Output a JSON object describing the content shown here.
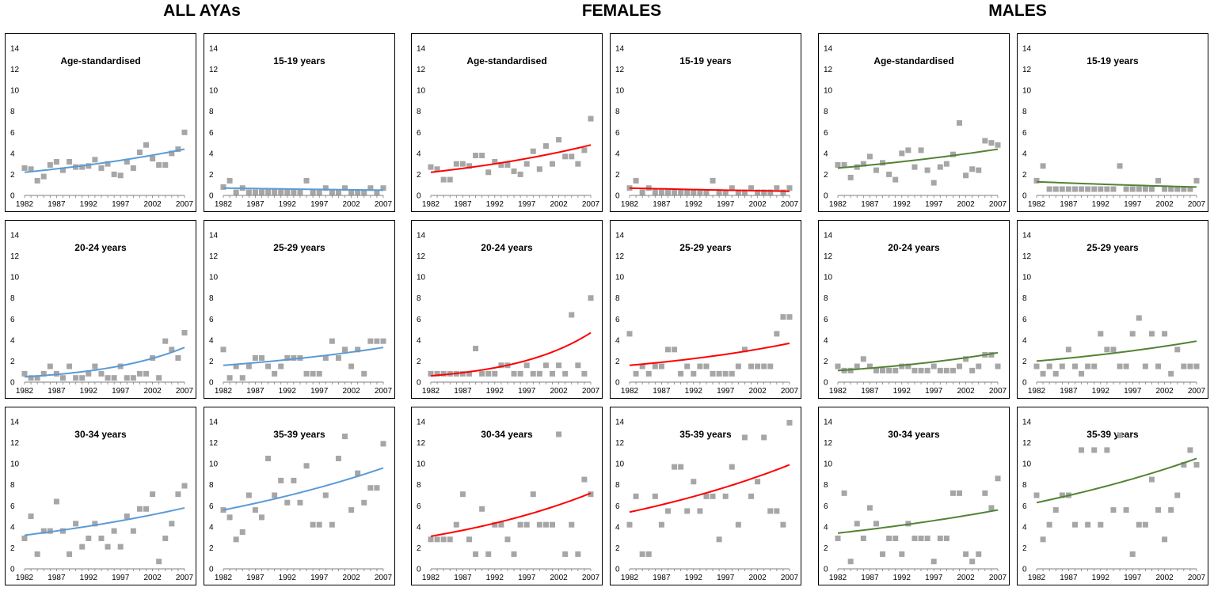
{
  "groups": [
    {
      "title": "ALL AYAs",
      "color": "#5b9bd5"
    },
    {
      "title": "FEMALES",
      "color": "#ff0000"
    },
    {
      "title": "MALES",
      "color": "#548235"
    }
  ],
  "x_ticks": [
    "1982",
    "1987",
    "1992",
    "1997",
    "2002",
    "2007"
  ],
  "y_ticks": [
    "0",
    "2",
    "4",
    "6",
    "8",
    "10",
    "12",
    "14"
  ],
  "chart_data": [
    {
      "type": "scatter",
      "group": "ALL AYAs",
      "title": "Age-standardised",
      "xlim": [
        1982,
        2007
      ],
      "ylim": [
        0,
        14
      ],
      "marker_color": "#a6a6a6",
      "fit_color": "#5b9bd5",
      "x": [
        1982,
        1983,
        1984,
        1985,
        1986,
        1987,
        1988,
        1989,
        1990,
        1991,
        1992,
        1993,
        1994,
        1995,
        1996,
        1997,
        1998,
        1999,
        2000,
        2001,
        2002,
        2003,
        2004,
        2005,
        2006,
        2007
      ],
      "values": [
        2.6,
        2.5,
        1.4,
        1.8,
        2.9,
        3.2,
        2.4,
        3.2,
        2.7,
        2.7,
        2.8,
        3.4,
        2.6,
        3.0,
        2.0,
        1.9,
        3.2,
        2.6,
        4.1,
        4.8,
        3.5,
        2.9,
        2.9,
        4.0,
        4.4,
        6.0
      ],
      "fit": [
        2.2,
        4.4
      ]
    },
    {
      "type": "scatter",
      "group": "ALL AYAs",
      "title": "15-19 years",
      "xlim": [
        1982,
        2007
      ],
      "ylim": [
        0,
        14
      ],
      "marker_color": "#a6a6a6",
      "fit_color": "#5b9bd5",
      "x": [
        1982,
        1983,
        1984,
        1985,
        1986,
        1987,
        1988,
        1989,
        1990,
        1991,
        1992,
        1993,
        1994,
        1995,
        1996,
        1997,
        1998,
        1999,
        2000,
        2001,
        2002,
        2003,
        2004,
        2005,
        2006,
        2007
      ],
      "values": [
        0.8,
        1.4,
        0.3,
        0.7,
        0.3,
        0.3,
        0.3,
        0.3,
        0.3,
        0.3,
        0.3,
        0.3,
        0.3,
        1.4,
        0.3,
        0.3,
        0.7,
        0.3,
        0.3,
        0.7,
        0.3,
        0.3,
        0.3,
        0.7,
        0.3,
        0.7
      ],
      "fit": [
        0.7,
        0.5
      ]
    },
    {
      "type": "scatter",
      "group": "FEMALES",
      "title": "Age-standardised",
      "xlim": [
        1982,
        2007
      ],
      "ylim": [
        0,
        14
      ],
      "marker_color": "#a6a6a6",
      "fit_color": "#ff0000",
      "x": [
        1982,
        1983,
        1984,
        1985,
        1986,
        1987,
        1988,
        1989,
        1990,
        1991,
        1992,
        1993,
        1994,
        1995,
        1996,
        1997,
        1998,
        1999,
        2000,
        2001,
        2002,
        2003,
        2004,
        2005,
        2006,
        2007
      ],
      "values": [
        2.7,
        2.5,
        1.5,
        1.5,
        3.0,
        3.0,
        2.8,
        3.8,
        3.8,
        2.2,
        3.2,
        2.9,
        2.9,
        2.3,
        2.0,
        3.0,
        4.2,
        2.5,
        4.7,
        3.0,
        5.3,
        3.7,
        3.7,
        3.0,
        4.3,
        7.3
      ],
      "fit": [
        2.2,
        4.8
      ]
    },
    {
      "type": "scatter",
      "group": "FEMALES",
      "title": "15-19 years",
      "xlim": [
        1982,
        2007
      ],
      "ylim": [
        0,
        14
      ],
      "marker_color": "#a6a6a6",
      "fit_color": "#ff0000",
      "x": [
        1982,
        1983,
        1984,
        1985,
        1986,
        1987,
        1988,
        1989,
        1990,
        1991,
        1992,
        1993,
        1994,
        1995,
        1996,
        1997,
        1998,
        1999,
        2000,
        2001,
        2002,
        2003,
        2004,
        2005,
        2006,
        2007
      ],
      "values": [
        0.7,
        1.4,
        0.3,
        0.7,
        0.3,
        0.3,
        0.3,
        0.3,
        0.3,
        0.3,
        0.3,
        0.3,
        0.3,
        1.4,
        0.3,
        0.3,
        0.7,
        0.3,
        0.3,
        0.7,
        0.3,
        0.3,
        0.3,
        0.7,
        0.3,
        0.7
      ],
      "fit": [
        0.7,
        0.4
      ]
    },
    {
      "type": "scatter",
      "group": "MALES",
      "title": "Age-standardised",
      "xlim": [
        1982,
        2007
      ],
      "ylim": [
        0,
        14
      ],
      "marker_color": "#a6a6a6",
      "fit_color": "#548235",
      "x": [
        1982,
        1983,
        1984,
        1985,
        1986,
        1987,
        1988,
        1989,
        1990,
        1991,
        1992,
        1993,
        1994,
        1995,
        1996,
        1997,
        1998,
        1999,
        2000,
        2001,
        2002,
        2003,
        2004,
        2005,
        2006,
        2007
      ],
      "values": [
        2.9,
        2.9,
        1.7,
        2.7,
        3.0,
        3.7,
        2.4,
        3.1,
        2.0,
        1.5,
        4.0,
        4.3,
        2.7,
        4.3,
        2.4,
        1.2,
        2.7,
        3.0,
        3.9,
        6.9,
        1.9,
        2.5,
        2.4,
        5.2,
        5.0,
        4.8
      ],
      "fit": [
        2.6,
        4.4
      ]
    },
    {
      "type": "scatter",
      "group": "MALES",
      "title": "15-19 years",
      "xlim": [
        1982,
        2007
      ],
      "ylim": [
        0,
        14
      ],
      "marker_color": "#a6a6a6",
      "fit_color": "#548235",
      "x": [
        1982,
        1983,
        1984,
        1985,
        1986,
        1987,
        1988,
        1989,
        1990,
        1991,
        1992,
        1993,
        1994,
        1995,
        1996,
        1997,
        1998,
        1999,
        2000,
        2001,
        2002,
        2003,
        2004,
        2005,
        2006,
        2007
      ],
      "values": [
        1.4,
        2.8,
        0.6,
        0.6,
        0.6,
        0.6,
        0.6,
        0.6,
        0.6,
        0.6,
        0.6,
        0.6,
        0.6,
        2.8,
        0.6,
        0.6,
        0.6,
        0.6,
        0.6,
        1.4,
        0.6,
        0.6,
        0.6,
        0.6,
        0.6,
        1.4
      ],
      "fit": [
        1.3,
        0.8
      ]
    },
    {
      "type": "scatter",
      "group": "ALL AYAs",
      "title": "20-24 years",
      "xlim": [
        1982,
        2007
      ],
      "ylim": [
        0,
        14
      ],
      "marker_color": "#a6a6a6",
      "fit_color": "#5b9bd5",
      "x": [
        1982,
        1983,
        1984,
        1985,
        1986,
        1987,
        1988,
        1989,
        1990,
        1991,
        1992,
        1993,
        1994,
        1995,
        1996,
        1997,
        1998,
        1999,
        2000,
        2001,
        2002,
        2003,
        2004,
        2005,
        2006,
        2007
      ],
      "values": [
        0.8,
        0.4,
        0.4,
        0.8,
        1.5,
        0.8,
        0.4,
        1.5,
        0.4,
        0.4,
        0.8,
        1.5,
        0.8,
        0.4,
        0.4,
        1.5,
        0.4,
        0.4,
        0.8,
        0.8,
        2.3,
        0.4,
        3.9,
        3.1,
        2.3,
        4.7
      ],
      "fit": [
        0.5,
        3.3
      ]
    },
    {
      "type": "scatter",
      "group": "ALL AYAs",
      "title": "25-29 years",
      "xlim": [
        1982,
        2007
      ],
      "ylim": [
        0,
        14
      ],
      "marker_color": "#a6a6a6",
      "fit_color": "#5b9bd5",
      "x": [
        1982,
        1983,
        1984,
        1985,
        1986,
        1987,
        1988,
        1989,
        1990,
        1991,
        1992,
        1993,
        1994,
        1995,
        1996,
        1997,
        1998,
        1999,
        2000,
        2001,
        2002,
        2003,
        2004,
        2005,
        2006,
        2007
      ],
      "values": [
        3.1,
        0.4,
        1.5,
        0.4,
        1.5,
        2.3,
        2.3,
        1.5,
        0.8,
        1.5,
        2.3,
        2.3,
        2.3,
        0.8,
        0.8,
        0.8,
        2.3,
        3.9,
        2.3,
        3.1,
        1.5,
        3.1,
        0.8,
        3.9,
        3.9,
        3.9
      ],
      "fit": [
        1.6,
        3.3
      ]
    },
    {
      "type": "scatter",
      "group": "FEMALES",
      "title": "20-24 years",
      "xlim": [
        1982,
        2007
      ],
      "ylim": [
        0,
        14
      ],
      "marker_color": "#a6a6a6",
      "fit_color": "#ff0000",
      "x": [
        1982,
        1983,
        1984,
        1985,
        1986,
        1987,
        1988,
        1989,
        1990,
        1991,
        1992,
        1993,
        1994,
        1995,
        1996,
        1997,
        1998,
        1999,
        2000,
        2001,
        2002,
        2003,
        2004,
        2005,
        2006,
        2007
      ],
      "values": [
        0.8,
        0.8,
        0.8,
        0.8,
        0.8,
        0.8,
        0.8,
        3.2,
        0.8,
        0.8,
        0.8,
        1.6,
        1.6,
        0.8,
        0.8,
        1.6,
        0.8,
        0.8,
        1.6,
        0.8,
        1.6,
        0.8,
        6.4,
        1.6,
        0.8,
        8.0
      ],
      "fit": [
        0.6,
        4.7
      ]
    },
    {
      "type": "scatter",
      "group": "FEMALES",
      "title": "25-29 years",
      "xlim": [
        1982,
        2007
      ],
      "ylim": [
        0,
        14
      ],
      "marker_color": "#a6a6a6",
      "fit_color": "#ff0000",
      "x": [
        1982,
        1983,
        1984,
        1985,
        1986,
        1987,
        1988,
        1989,
        1990,
        1991,
        1992,
        1993,
        1994,
        1995,
        1996,
        1997,
        1998,
        1999,
        2000,
        2001,
        2002,
        2003,
        2004,
        2005,
        2006,
        2007
      ],
      "values": [
        4.6,
        0.8,
        1.5,
        0.8,
        1.5,
        1.5,
        3.1,
        3.1,
        0.8,
        1.5,
        0.8,
        1.5,
        1.5,
        0.8,
        0.8,
        0.8,
        0.8,
        1.5,
        3.1,
        1.5,
        1.5,
        1.5,
        1.5,
        4.6,
        6.2,
        6.2
      ],
      "fit": [
        1.6,
        3.7
      ]
    },
    {
      "type": "scatter",
      "group": "MALES",
      "title": "20-24 years",
      "xlim": [
        1982,
        2007
      ],
      "ylim": [
        0,
        14
      ],
      "marker_color": "#a6a6a6",
      "fit_color": "#548235",
      "x": [
        1982,
        1983,
        1984,
        1985,
        1986,
        1987,
        1988,
        1989,
        1990,
        1991,
        1992,
        1993,
        1994,
        1995,
        1996,
        1997,
        1998,
        1999,
        2000,
        2001,
        2002,
        2003,
        2004,
        2005,
        2006,
        2007
      ],
      "values": [
        1.5,
        1.1,
        1.1,
        1.5,
        2.2,
        1.5,
        1.1,
        1.1,
        1.1,
        1.1,
        1.5,
        1.5,
        1.1,
        1.1,
        1.1,
        1.5,
        1.1,
        1.1,
        1.1,
        1.5,
        2.2,
        1.1,
        1.5,
        2.6,
        2.6,
        1.5
      ],
      "fit": [
        1.1,
        2.8
      ]
    },
    {
      "type": "scatter",
      "group": "MALES",
      "title": "25-29 years",
      "xlim": [
        1982,
        2007
      ],
      "ylim": [
        0,
        14
      ],
      "marker_color": "#a6a6a6",
      "fit_color": "#548235",
      "x": [
        1982,
        1983,
        1984,
        1985,
        1986,
        1987,
        1988,
        1989,
        1990,
        1991,
        1992,
        1993,
        1994,
        1995,
        1996,
        1997,
        1998,
        1999,
        2000,
        2001,
        2002,
        2003,
        2004,
        2005,
        2006,
        2007
      ],
      "values": [
        1.5,
        0.8,
        1.5,
        0.8,
        1.5,
        3.1,
        1.5,
        0.8,
        1.5,
        1.5,
        4.6,
        3.1,
        3.1,
        1.5,
        1.5,
        4.6,
        6.1,
        1.5,
        4.6,
        1.5,
        4.6,
        0.8,
        3.1,
        1.5,
        1.5,
        1.5
      ],
      "fit": [
        2.0,
        3.9
      ]
    },
    {
      "type": "scatter",
      "group": "ALL AYAs",
      "title": "30-34 years",
      "xlim": [
        1982,
        2007
      ],
      "ylim": [
        0,
        14
      ],
      "marker_color": "#a6a6a6",
      "fit_color": "#5b9bd5",
      "x": [
        1982,
        1983,
        1984,
        1985,
        1986,
        1987,
        1988,
        1989,
        1990,
        1991,
        1992,
        1993,
        1994,
        1995,
        1996,
        1997,
        1998,
        1999,
        2000,
        2001,
        2002,
        2003,
        2004,
        2005,
        2006,
        2007
      ],
      "values": [
        2.9,
        5.0,
        1.4,
        3.6,
        3.6,
        6.4,
        3.6,
        1.4,
        4.3,
        2.1,
        2.9,
        4.3,
        2.9,
        2.1,
        3.6,
        2.1,
        5.0,
        3.6,
        5.7,
        5.7,
        7.1,
        0.7,
        2.9,
        4.3,
        7.1,
        7.9
      ],
      "fit": [
        3.2,
        5.8
      ]
    },
    {
      "type": "scatter",
      "group": "ALL AYAs",
      "title": "35-39 years",
      "xlim": [
        1982,
        2007
      ],
      "ylim": [
        0,
        14
      ],
      "marker_color": "#a6a6a6",
      "fit_color": "#5b9bd5",
      "x": [
        1982,
        1983,
        1984,
        1985,
        1986,
        1987,
        1988,
        1989,
        1990,
        1991,
        1992,
        1993,
        1994,
        1995,
        1996,
        1997,
        1998,
        1999,
        2000,
        2001,
        2002,
        2003,
        2004,
        2005,
        2006,
        2007
      ],
      "values": [
        5.6,
        4.9,
        2.8,
        3.5,
        7.0,
        5.6,
        4.9,
        10.5,
        7.0,
        8.4,
        6.3,
        8.4,
        6.3,
        9.8,
        4.2,
        4.2,
        7.0,
        4.2,
        10.5,
        12.6,
        5.6,
        9.1,
        6.3,
        7.7,
        7.7,
        11.9
      ],
      "fit": [
        5.6,
        9.6
      ]
    },
    {
      "type": "scatter",
      "group": "FEMALES",
      "title": "30-34 years",
      "xlim": [
        1982,
        2007
      ],
      "ylim": [
        0,
        14
      ],
      "marker_color": "#a6a6a6",
      "fit_color": "#ff0000",
      "x": [
        1982,
        1983,
        1984,
        1985,
        1986,
        1987,
        1988,
        1989,
        1990,
        1991,
        1992,
        1993,
        1994,
        1995,
        1996,
        1997,
        1998,
        1999,
        2000,
        2001,
        2002,
        2003,
        2004,
        2005,
        2006,
        2007
      ],
      "values": [
        2.8,
        2.8,
        2.8,
        2.8,
        4.2,
        7.1,
        2.8,
        1.4,
        5.7,
        1.4,
        4.2,
        4.2,
        2.8,
        1.4,
        4.2,
        4.2,
        7.1,
        4.2,
        4.2,
        4.2,
        12.8,
        1.4,
        4.2,
        1.4,
        8.5,
        7.1
      ],
      "fit": [
        3.1,
        7.2
      ]
    },
    {
      "type": "scatter",
      "group": "FEMALES",
      "title": "35-39 years",
      "xlim": [
        1982,
        2007
      ],
      "ylim": [
        0,
        14
      ],
      "marker_color": "#a6a6a6",
      "fit_color": "#ff0000",
      "x": [
        1982,
        1983,
        1984,
        1985,
        1986,
        1987,
        1988,
        1989,
        1990,
        1991,
        1992,
        1993,
        1994,
        1995,
        1996,
        1997,
        1998,
        1999,
        2000,
        2001,
        2002,
        2003,
        2004,
        2005,
        2006,
        2007
      ],
      "values": [
        4.2,
        6.9,
        1.4,
        1.4,
        6.9,
        4.2,
        5.5,
        9.7,
        9.7,
        5.5,
        8.3,
        5.5,
        6.9,
        6.9,
        2.8,
        6.9,
        9.7,
        4.2,
        12.5,
        6.9,
        8.3,
        12.5,
        5.5,
        5.5,
        4.2,
        13.9
      ],
      "fit": [
        5.4,
        9.9
      ]
    },
    {
      "type": "scatter",
      "group": "MALES",
      "title": "30-34 years",
      "xlim": [
        1982,
        2007
      ],
      "ylim": [
        0,
        14
      ],
      "marker_color": "#a6a6a6",
      "fit_color": "#548235",
      "x": [
        1982,
        1983,
        1984,
        1985,
        1986,
        1987,
        1988,
        1989,
        1990,
        1991,
        1992,
        1993,
        1994,
        1995,
        1996,
        1997,
        1998,
        1999,
        2000,
        2001,
        2002,
        2003,
        2004,
        2005,
        2006,
        2007
      ],
      "values": [
        2.9,
        7.2,
        0.7,
        4.3,
        2.9,
        5.8,
        4.3,
        1.4,
        2.9,
        2.9,
        1.4,
        4.3,
        2.9,
        2.9,
        2.9,
        0.7,
        2.9,
        2.9,
        7.2,
        7.2,
        1.4,
        0.7,
        1.4,
        7.2,
        5.8,
        8.6
      ],
      "fit": [
        3.4,
        5.6
      ]
    },
    {
      "type": "scatter",
      "group": "MALES",
      "title": "35-39 years",
      "xlim": [
        1982,
        2007
      ],
      "ylim": [
        0,
        14
      ],
      "marker_color": "#a6a6a6",
      "fit_color": "#548235",
      "x": [
        1982,
        1983,
        1984,
        1985,
        1986,
        1987,
        1988,
        1989,
        1990,
        1991,
        1992,
        1993,
        1994,
        1995,
        1996,
        1997,
        1998,
        1999,
        2000,
        2001,
        2002,
        2003,
        2004,
        2005,
        2006,
        2007
      ],
      "values": [
        7.0,
        2.8,
        4.2,
        5.6,
        7.0,
        7.0,
        4.2,
        11.3,
        4.2,
        11.3,
        4.2,
        11.3,
        5.6,
        12.7,
        5.6,
        1.4,
        4.2,
        4.2,
        8.5,
        5.6,
        2.8,
        5.6,
        7.0,
        9.9,
        11.3,
        9.9
      ],
      "fit": [
        6.3,
        10.5
      ]
    }
  ]
}
